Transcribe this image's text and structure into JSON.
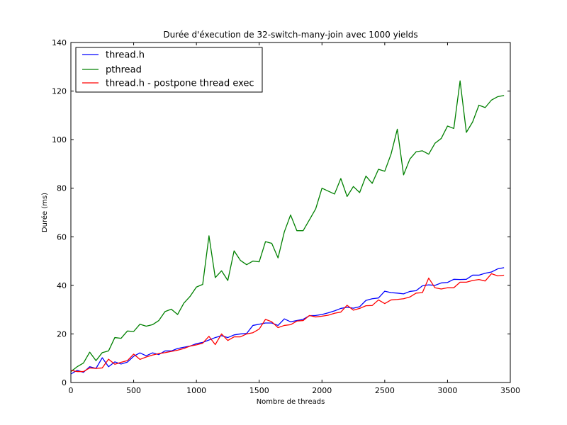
{
  "chart_data": {
    "type": "line",
    "title": "Durée d'éxecution de 32-switch-many-join avec 1000 yields",
    "xlabel": "Nombre de threads",
    "ylabel": "Durée (ms)",
    "xlim": [
      0,
      3500
    ],
    "ylim": [
      0,
      140
    ],
    "xticks": [
      0,
      500,
      1000,
      1500,
      2000,
      2500,
      3000,
      3500
    ],
    "yticks": [
      0,
      20,
      40,
      60,
      80,
      100,
      120,
      140
    ],
    "grid": false,
    "legend_position": "top-left",
    "x": [
      0,
      50,
      100,
      150,
      200,
      250,
      300,
      350,
      400,
      450,
      500,
      550,
      600,
      650,
      700,
      750,
      800,
      850,
      900,
      950,
      1000,
      1050,
      1100,
      1150,
      1200,
      1250,
      1300,
      1350,
      1400,
      1450,
      1500,
      1550,
      1600,
      1650,
      1700,
      1750,
      1800,
      1850,
      1900,
      1950,
      2000,
      2050,
      2100,
      2150,
      2200,
      2250,
      2300,
      2350,
      2400,
      2450,
      2500,
      2550,
      2600,
      2650,
      2700,
      2750,
      2800,
      2850,
      2900,
      2950,
      3000,
      3050,
      3100,
      3150,
      3200,
      3250,
      3300,
      3350,
      3400,
      3450
    ],
    "series": [
      {
        "name": "thread.h",
        "color": "#0000ff",
        "values": [
          3.5,
          5,
          4.2,
          6.5,
          5.8,
          10.2,
          6.5,
          8.5,
          7.6,
          8.4,
          10.8,
          12.2,
          11,
          12.2,
          11.5,
          13,
          13,
          14,
          14.5,
          15,
          16,
          16.5,
          17.5,
          18.5,
          19.3,
          18.5,
          19.6,
          20,
          20.2,
          23.5,
          24,
          24.5,
          24.5,
          23.5,
          26.2,
          25,
          25.5,
          26,
          27.5,
          27.6,
          28,
          28.7,
          29.5,
          30.5,
          31,
          30.6,
          31.2,
          33.8,
          34.5,
          34.8,
          37.6,
          37,
          36.8,
          36.5,
          37.5,
          37.8,
          39.8,
          40.2,
          40,
          41,
          41.2,
          42.5,
          42.4,
          42.5,
          44.2,
          44.2,
          45,
          45.5,
          46.8,
          47.3
        ]
      },
      {
        "name": "pthread",
        "color": "#008000",
        "values": [
          4.5,
          6.5,
          8,
          12.5,
          9,
          12.3,
          13,
          18.5,
          18.2,
          21.2,
          21,
          24,
          23.2,
          23.8,
          25.5,
          29.2,
          30.2,
          28,
          32.7,
          35.5,
          39.3,
          40.4,
          60.4,
          43.2,
          46,
          42,
          54.2,
          50.3,
          48.5,
          50,
          49.7,
          58,
          57.3,
          51.3,
          62,
          69,
          62.5,
          62.5,
          67,
          71.5,
          80,
          78.8,
          77.6,
          84,
          76.6,
          80.7,
          78.2,
          85,
          82,
          87.8,
          87,
          94,
          104.3,
          85.5,
          92,
          95,
          95.4,
          94,
          98.5,
          100.5,
          105.6,
          104.6,
          124.2,
          103,
          107.3,
          114.2,
          113.2,
          116.3,
          117.7,
          118.2
        ]
      },
      {
        "name": "thread.h - postpone thread exec",
        "color": "#ff0000",
        "values": [
          5,
          4.5,
          4.5,
          6,
          5.8,
          6,
          9.6,
          7.5,
          8.3,
          9,
          11.7,
          9.5,
          10.5,
          11.3,
          11.9,
          12.3,
          12.8,
          13.3,
          14,
          15,
          15.5,
          16.2,
          19,
          15.6,
          20,
          17.3,
          18.8,
          18.8,
          20,
          20.5,
          22,
          26,
          25,
          22.6,
          23.5,
          23.8,
          25.3,
          25.5,
          27.6,
          27,
          27.3,
          27.7,
          28.5,
          29,
          31.8,
          29.8,
          30.5,
          31.6,
          31.7,
          34,
          32.5,
          34,
          34.2,
          34.5,
          35.2,
          36.8,
          37,
          43,
          39,
          38.5,
          39,
          39,
          41.3,
          41.3,
          42,
          42.4,
          41.8,
          44.8,
          43.9,
          44.2
        ]
      }
    ]
  }
}
